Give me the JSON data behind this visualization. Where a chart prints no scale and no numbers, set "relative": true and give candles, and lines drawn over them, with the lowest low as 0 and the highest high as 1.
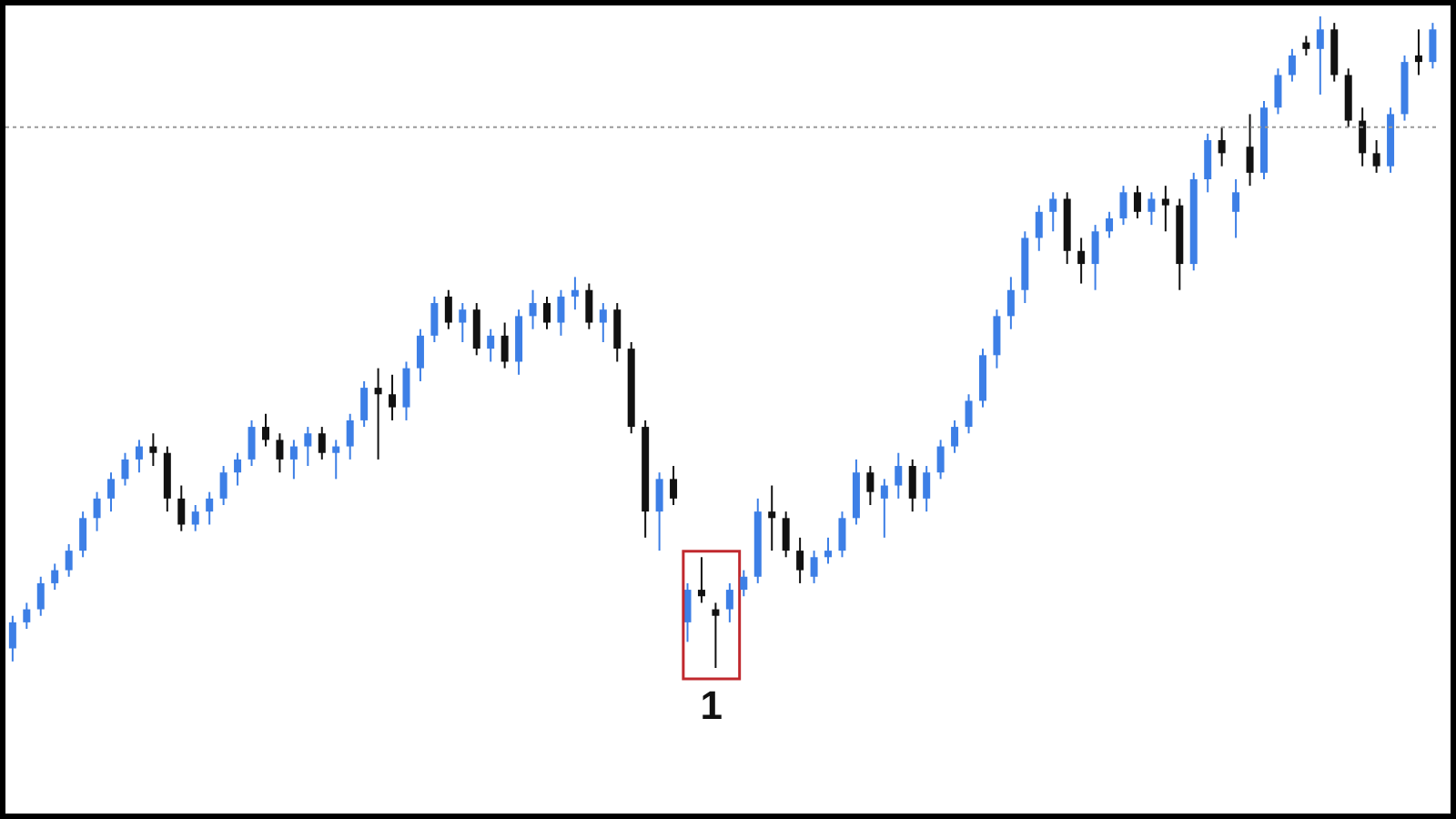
{
  "chart_data": {
    "type": "candlestick",
    "relative": true,
    "categories": [
      null,
      null,
      null,
      null,
      null,
      null,
      null,
      null,
      null,
      null,
      null,
      null,
      null,
      null,
      null,
      null,
      null,
      null,
      null,
      null,
      null,
      null,
      null,
      null,
      null,
      null,
      null,
      null,
      null,
      null,
      null,
      null,
      null,
      null,
      null,
      null,
      null,
      null,
      null,
      null,
      null,
      null,
      null,
      null,
      null,
      null,
      null,
      null,
      null,
      null,
      null,
      null,
      null,
      null,
      null,
      null,
      null,
      null,
      null,
      null,
      null,
      null,
      null,
      null,
      null,
      null,
      null,
      null,
      null,
      null,
      null,
      null,
      null,
      null,
      null,
      null,
      null,
      null,
      null,
      null,
      null,
      null,
      null,
      null,
      null,
      null,
      null,
      null,
      null,
      null,
      null,
      null,
      null,
      null,
      null,
      null,
      null,
      null,
      null,
      null,
      null,
      null
    ],
    "ohlc": [
      [
        0.03,
        0.08,
        0.01,
        0.07
      ],
      [
        0.07,
        0.1,
        0.06,
        0.09
      ],
      [
        0.09,
        0.14,
        0.08,
        0.13
      ],
      [
        0.13,
        0.16,
        0.12,
        0.15
      ],
      [
        0.15,
        0.19,
        0.14,
        0.18
      ],
      [
        0.18,
        0.24,
        0.17,
        0.23
      ],
      [
        0.23,
        0.27,
        0.21,
        0.26
      ],
      [
        0.26,
        0.3,
        0.24,
        0.29
      ],
      [
        0.29,
        0.33,
        0.28,
        0.32
      ],
      [
        0.32,
        0.35,
        0.3,
        0.34
      ],
      [
        0.34,
        0.36,
        0.31,
        0.33
      ],
      [
        0.33,
        0.34,
        0.24,
        0.26
      ],
      [
        0.26,
        0.28,
        0.21,
        0.22
      ],
      [
        0.22,
        0.25,
        0.21,
        0.24
      ],
      [
        0.24,
        0.27,
        0.22,
        0.26
      ],
      [
        0.26,
        0.31,
        0.25,
        0.3
      ],
      [
        0.3,
        0.33,
        0.28,
        0.32
      ],
      [
        0.32,
        0.38,
        0.31,
        0.37
      ],
      [
        0.37,
        0.39,
        0.34,
        0.35
      ],
      [
        0.35,
        0.36,
        0.3,
        0.32
      ],
      [
        0.32,
        0.35,
        0.29,
        0.34
      ],
      [
        0.34,
        0.37,
        0.31,
        0.36
      ],
      [
        0.36,
        0.37,
        0.32,
        0.33
      ],
      [
        0.33,
        0.35,
        0.29,
        0.34
      ],
      [
        0.34,
        0.39,
        0.32,
        0.38
      ],
      [
        0.38,
        0.44,
        0.37,
        0.43
      ],
      [
        0.43,
        0.46,
        0.32,
        0.42
      ],
      [
        0.42,
        0.45,
        0.38,
        0.4
      ],
      [
        0.4,
        0.47,
        0.38,
        0.46
      ],
      [
        0.46,
        0.52,
        0.44,
        0.51
      ],
      [
        0.51,
        0.57,
        0.5,
        0.56
      ],
      [
        0.57,
        0.58,
        0.52,
        0.53
      ],
      [
        0.53,
        0.56,
        0.5,
        0.55
      ],
      [
        0.55,
        0.56,
        0.48,
        0.49
      ],
      [
        0.49,
        0.52,
        0.47,
        0.51
      ],
      [
        0.51,
        0.53,
        0.46,
        0.47
      ],
      [
        0.47,
        0.55,
        0.45,
        0.54
      ],
      [
        0.54,
        0.58,
        0.52,
        0.56
      ],
      [
        0.56,
        0.57,
        0.52,
        0.53
      ],
      [
        0.53,
        0.58,
        0.51,
        0.57
      ],
      [
        0.57,
        0.6,
        0.55,
        0.58
      ],
      [
        0.58,
        0.59,
        0.52,
        0.53
      ],
      [
        0.53,
        0.56,
        0.5,
        0.55
      ],
      [
        0.55,
        0.56,
        0.47,
        0.49
      ],
      [
        0.49,
        0.5,
        0.36,
        0.37
      ],
      [
        0.37,
        0.38,
        0.2,
        0.24
      ],
      [
        0.24,
        0.3,
        0.18,
        0.29
      ],
      [
        0.29,
        0.31,
        0.25,
        0.26
      ],
      [
        0.07,
        0.13,
        0.04,
        0.12
      ],
      [
        0.12,
        0.17,
        0.1,
        0.11
      ],
      [
        0.09,
        0.1,
        0.0,
        0.08
      ],
      [
        0.09,
        0.13,
        0.07,
        0.12
      ],
      [
        0.12,
        0.15,
        0.11,
        0.14
      ],
      [
        0.14,
        0.26,
        0.13,
        0.24
      ],
      [
        0.24,
        0.28,
        0.18,
        0.23
      ],
      [
        0.23,
        0.24,
        0.17,
        0.18
      ],
      [
        0.18,
        0.2,
        0.13,
        0.15
      ],
      [
        0.14,
        0.18,
        0.13,
        0.17
      ],
      [
        0.17,
        0.2,
        0.16,
        0.18
      ],
      [
        0.18,
        0.24,
        0.17,
        0.23
      ],
      [
        0.23,
        0.32,
        0.22,
        0.3
      ],
      [
        0.3,
        0.31,
        0.25,
        0.27
      ],
      [
        0.26,
        0.29,
        0.2,
        0.28
      ],
      [
        0.28,
        0.33,
        0.26,
        0.31
      ],
      [
        0.31,
        0.32,
        0.24,
        0.26
      ],
      [
        0.26,
        0.31,
        0.24,
        0.3
      ],
      [
        0.3,
        0.35,
        0.29,
        0.34
      ],
      [
        0.34,
        0.38,
        0.33,
        0.37
      ],
      [
        0.37,
        0.42,
        0.36,
        0.41
      ],
      [
        0.41,
        0.49,
        0.4,
        0.48
      ],
      [
        0.48,
        0.55,
        0.46,
        0.54
      ],
      [
        0.54,
        0.6,
        0.52,
        0.58
      ],
      [
        0.58,
        0.67,
        0.56,
        0.66
      ],
      [
        0.66,
        0.71,
        0.64,
        0.7
      ],
      [
        0.7,
        0.73,
        0.67,
        0.72
      ],
      [
        0.72,
        0.73,
        0.62,
        0.64
      ],
      [
        0.64,
        0.66,
        0.59,
        0.62
      ],
      [
        0.62,
        0.68,
        0.58,
        0.67
      ],
      [
        0.67,
        0.7,
        0.66,
        0.69
      ],
      [
        0.69,
        0.74,
        0.68,
        0.73
      ],
      [
        0.73,
        0.74,
        0.69,
        0.7
      ],
      [
        0.7,
        0.73,
        0.68,
        0.72
      ],
      [
        0.72,
        0.74,
        0.67,
        0.71
      ],
      [
        0.71,
        0.72,
        0.58,
        0.62
      ],
      [
        0.62,
        0.76,
        0.61,
        0.75
      ],
      [
        0.75,
        0.82,
        0.73,
        0.81
      ],
      [
        0.81,
        0.83,
        0.77,
        0.79
      ],
      [
        0.7,
        0.75,
        0.66,
        0.73
      ],
      [
        0.8,
        0.85,
        0.74,
        0.76
      ],
      [
        0.76,
        0.87,
        0.75,
        0.86
      ],
      [
        0.86,
        0.92,
        0.85,
        0.91
      ],
      [
        0.91,
        0.95,
        0.9,
        0.94
      ],
      [
        0.96,
        0.97,
        0.94,
        0.95
      ],
      [
        0.95,
        1.0,
        0.88,
        0.98
      ],
      [
        0.98,
        0.99,
        0.9,
        0.91
      ],
      [
        0.91,
        0.92,
        0.83,
        0.84
      ],
      [
        0.84,
        0.86,
        0.77,
        0.79
      ],
      [
        0.79,
        0.81,
        0.76,
        0.77
      ],
      [
        0.77,
        0.86,
        0.76,
        0.85
      ],
      [
        0.85,
        0.94,
        0.84,
        0.93
      ],
      [
        0.94,
        0.98,
        0.91,
        0.93
      ],
      [
        0.93,
        0.99,
        0.92,
        0.98
      ]
    ],
    "colors": [
      "#3d7fe6",
      "#3d7fe6",
      "#3d7fe6",
      "#3d7fe6",
      "#3d7fe6",
      "#3d7fe6",
      "#3d7fe6",
      "#3d7fe6",
      "#3d7fe6",
      "#3d7fe6",
      "#111111",
      "#111111",
      "#111111",
      "#3d7fe6",
      "#3d7fe6",
      "#3d7fe6",
      "#3d7fe6",
      "#3d7fe6",
      "#111111",
      "#111111",
      "#3d7fe6",
      "#3d7fe6",
      "#111111",
      "#3d7fe6",
      "#3d7fe6",
      "#3d7fe6",
      "#111111",
      "#111111",
      "#3d7fe6",
      "#3d7fe6",
      "#3d7fe6",
      "#111111",
      "#3d7fe6",
      "#111111",
      "#3d7fe6",
      "#111111",
      "#3d7fe6",
      "#3d7fe6",
      "#111111",
      "#3d7fe6",
      "#3d7fe6",
      "#111111",
      "#3d7fe6",
      "#111111",
      "#111111",
      "#111111",
      "#3d7fe6",
      "#111111",
      "#3d7fe6",
      "#111111",
      "#111111",
      "#3d7fe6",
      "#3d7fe6",
      "#3d7fe6",
      "#111111",
      "#111111",
      "#111111",
      "#3d7fe6",
      "#3d7fe6",
      "#3d7fe6",
      "#3d7fe6",
      "#111111",
      "#3d7fe6",
      "#3d7fe6",
      "#111111",
      "#3d7fe6",
      "#3d7fe6",
      "#3d7fe6",
      "#3d7fe6",
      "#3d7fe6",
      "#3d7fe6",
      "#3d7fe6",
      "#3d7fe6",
      "#3d7fe6",
      "#3d7fe6",
      "#111111",
      "#111111",
      "#3d7fe6",
      "#3d7fe6",
      "#3d7fe6",
      "#111111",
      "#3d7fe6",
      "#111111",
      "#111111",
      "#3d7fe6",
      "#3d7fe6",
      "#111111",
      "#3d7fe6",
      "#111111",
      "#3d7fe6",
      "#3d7fe6",
      "#3d7fe6",
      "#111111",
      "#3d7fe6",
      "#111111",
      "#111111",
      "#111111",
      "#111111",
      "#3d7fe6",
      "#3d7fe6",
      "#111111",
      "#3d7fe6"
    ],
    "ref_lines": [
      {
        "axis": "y",
        "value": 0.83,
        "label": null,
        "color": "#999999",
        "line_style": "dotted"
      }
    ],
    "annotations": [
      "1"
    ]
  }
}
